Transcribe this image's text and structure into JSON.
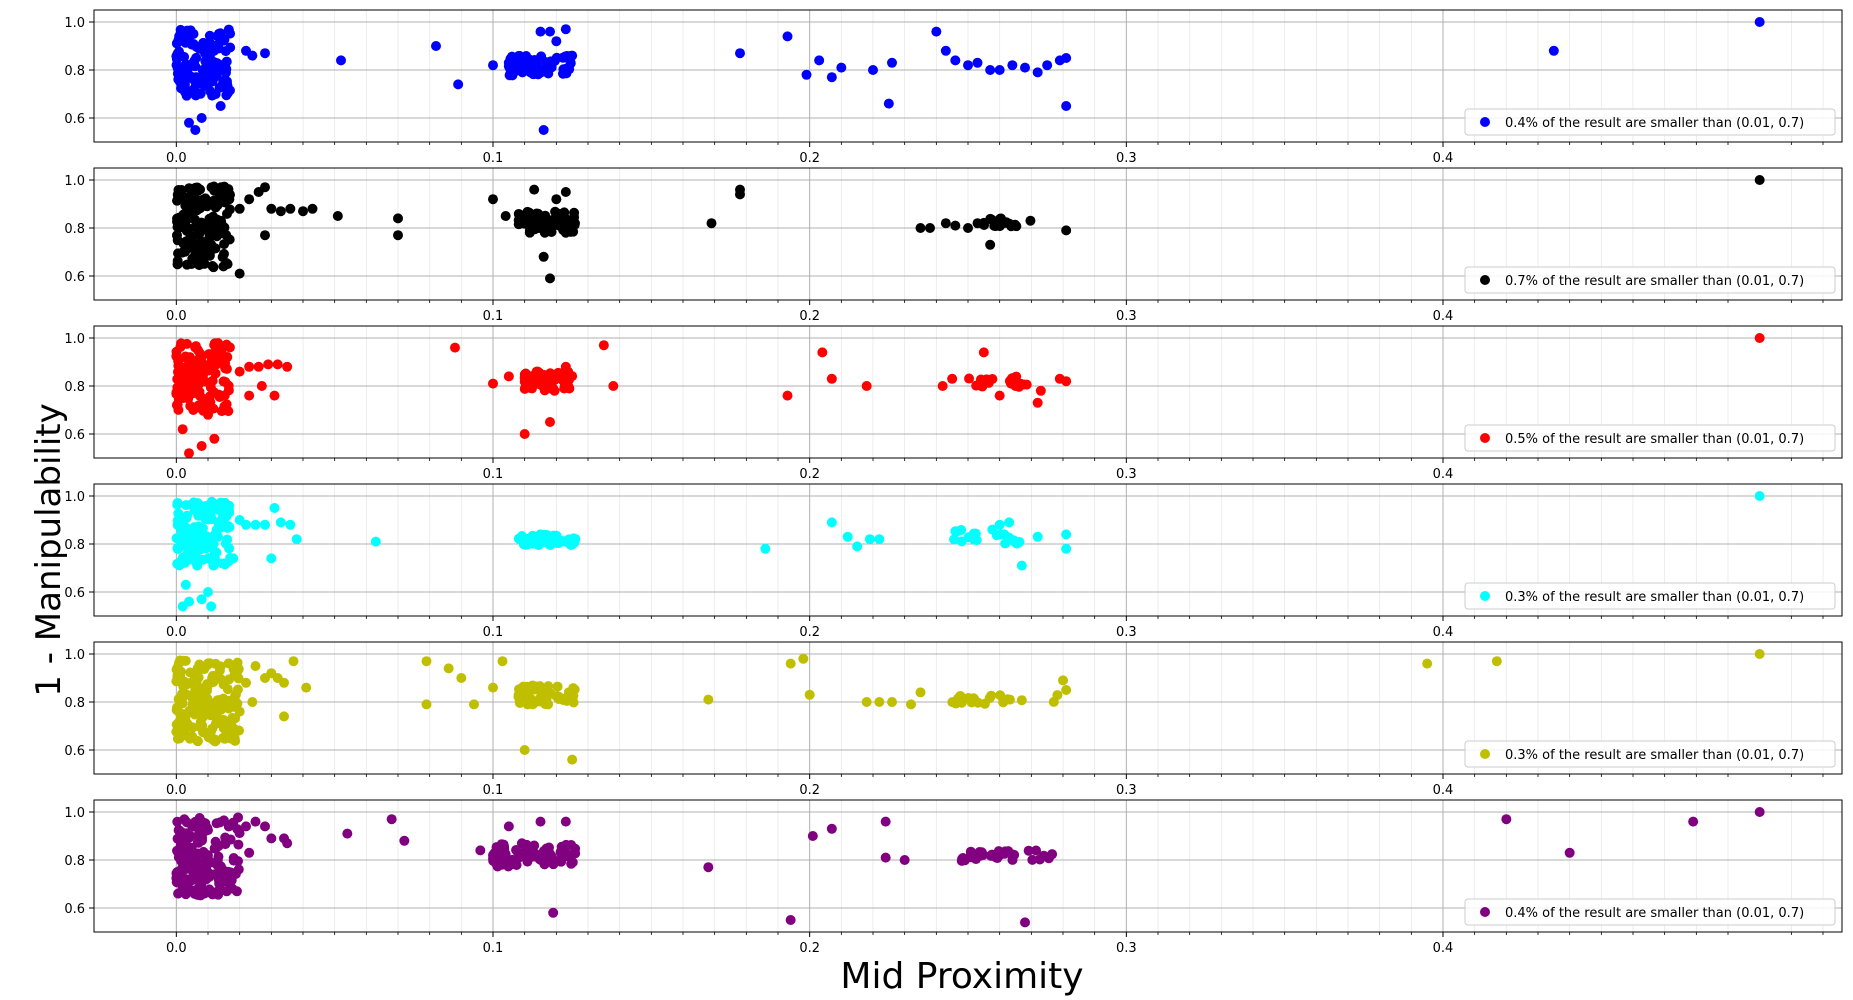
{
  "figure": {
    "xlabel": "Mid Proximity",
    "ylabel": "1 - Manipulability"
  },
  "chart_data": [
    {
      "type": "scatter",
      "color": "#0000ff",
      "xlim": [
        -0.026,
        0.526
      ],
      "ylim": [
        0.5,
        1.05
      ],
      "xticks": [
        0.0,
        0.1,
        0.2,
        0.3,
        0.4
      ],
      "yticks": [
        0.6,
        0.8,
        1.0
      ],
      "grid": true,
      "legend_position": "lower-right",
      "legend": "0.4% of the result are smaller than (0.01, 0.7)",
      "clusters": [
        {
          "x": [
            0.0,
            0.017
          ],
          "y": [
            0.6,
            0.97
          ],
          "n": 140
        },
        {
          "x": [
            0.105,
            0.125
          ],
          "y": [
            0.75,
            0.86
          ],
          "n": 70
        }
      ],
      "points": [
        [
          0.022,
          0.88
        ],
        [
          0.024,
          0.86
        ],
        [
          0.028,
          0.87
        ],
        [
          0.052,
          0.84
        ],
        [
          0.082,
          0.9
        ],
        [
          0.089,
          0.74
        ],
        [
          0.1,
          0.82
        ],
        [
          0.105,
          0.83
        ],
        [
          0.115,
          0.96
        ],
        [
          0.118,
          0.96
        ],
        [
          0.12,
          0.92
        ],
        [
          0.123,
          0.97
        ],
        [
          0.116,
          0.55
        ],
        [
          0.006,
          0.55
        ],
        [
          0.008,
          0.6
        ],
        [
          0.004,
          0.58
        ],
        [
          0.014,
          0.65
        ],
        [
          0.178,
          0.87
        ],
        [
          0.193,
          0.94
        ],
        [
          0.199,
          0.78
        ],
        [
          0.203,
          0.84
        ],
        [
          0.207,
          0.77
        ],
        [
          0.21,
          0.81
        ],
        [
          0.22,
          0.8
        ],
        [
          0.225,
          0.66
        ],
        [
          0.226,
          0.83
        ],
        [
          0.24,
          0.96
        ],
        [
          0.243,
          0.88
        ],
        [
          0.246,
          0.84
        ],
        [
          0.25,
          0.82
        ],
        [
          0.253,
          0.83
        ],
        [
          0.257,
          0.8
        ],
        [
          0.26,
          0.8
        ],
        [
          0.264,
          0.82
        ],
        [
          0.268,
          0.81
        ],
        [
          0.272,
          0.79
        ],
        [
          0.275,
          0.82
        ],
        [
          0.279,
          0.84
        ],
        [
          0.281,
          0.85
        ],
        [
          0.281,
          0.65
        ],
        [
          0.435,
          0.88
        ],
        [
          0.5,
          1.0
        ]
      ]
    },
    {
      "type": "scatter",
      "color": "#000000",
      "xlim": [
        -0.026,
        0.526
      ],
      "ylim": [
        0.5,
        1.05
      ],
      "xticks": [
        0.0,
        0.1,
        0.2,
        0.3,
        0.4
      ],
      "yticks": [
        0.6,
        0.8,
        1.0
      ],
      "grid": true,
      "legend_position": "lower-right",
      "legend": "0.7% of the result are smaller than (0.01, 0.7)",
      "clusters": [
        {
          "x": [
            0.0,
            0.017
          ],
          "y": [
            0.52,
            0.98
          ],
          "n": 160
        },
        {
          "x": [
            0.108,
            0.126
          ],
          "y": [
            0.75,
            0.87
          ],
          "n": 60
        },
        {
          "x": [
            0.255,
            0.27
          ],
          "y": [
            0.79,
            0.84
          ],
          "n": 20
        }
      ],
      "points": [
        [
          0.02,
          0.88
        ],
        [
          0.023,
          0.92
        ],
        [
          0.026,
          0.95
        ],
        [
          0.028,
          0.97
        ],
        [
          0.03,
          0.88
        ],
        [
          0.033,
          0.87
        ],
        [
          0.036,
          0.88
        ],
        [
          0.04,
          0.87
        ],
        [
          0.043,
          0.88
        ],
        [
          0.051,
          0.85
        ],
        [
          0.07,
          0.84
        ],
        [
          0.07,
          0.77
        ],
        [
          0.028,
          0.77
        ],
        [
          0.02,
          0.61
        ],
        [
          0.1,
          0.92
        ],
        [
          0.104,
          0.85
        ],
        [
          0.113,
          0.96
        ],
        [
          0.12,
          0.92
        ],
        [
          0.116,
          0.68
        ],
        [
          0.118,
          0.59
        ],
        [
          0.123,
          0.95
        ],
        [
          0.169,
          0.82
        ],
        [
          0.178,
          0.96
        ],
        [
          0.178,
          0.94
        ],
        [
          0.235,
          0.8
        ],
        [
          0.238,
          0.8
        ],
        [
          0.243,
          0.82
        ],
        [
          0.246,
          0.81
        ],
        [
          0.25,
          0.8
        ],
        [
          0.253,
          0.82
        ],
        [
          0.257,
          0.73
        ],
        [
          0.281,
          0.79
        ],
        [
          0.5,
          1.0
        ]
      ]
    },
    {
      "type": "scatter",
      "color": "#ff0000",
      "xlim": [
        -0.026,
        0.526
      ],
      "ylim": [
        0.5,
        1.05
      ],
      "xticks": [
        0.0,
        0.1,
        0.2,
        0.3,
        0.4
      ],
      "yticks": [
        0.6,
        0.8,
        1.0
      ],
      "grid": true,
      "legend_position": "lower-right",
      "legend": "0.5% of the result are smaller than (0.01, 0.7)",
      "clusters": [
        {
          "x": [
            0.0,
            0.017
          ],
          "y": [
            0.6,
            0.98
          ],
          "n": 140
        },
        {
          "x": [
            0.11,
            0.126
          ],
          "y": [
            0.75,
            0.86
          ],
          "n": 60
        },
        {
          "x": [
            0.25,
            0.27
          ],
          "y": [
            0.78,
            0.84
          ],
          "n": 20
        }
      ],
      "points": [
        [
          0.02,
          0.86
        ],
        [
          0.023,
          0.88
        ],
        [
          0.026,
          0.88
        ],
        [
          0.029,
          0.89
        ],
        [
          0.032,
          0.89
        ],
        [
          0.035,
          0.88
        ],
        [
          0.027,
          0.8
        ],
        [
          0.031,
          0.76
        ],
        [
          0.023,
          0.76
        ],
        [
          0.004,
          0.52
        ],
        [
          0.008,
          0.55
        ],
        [
          0.012,
          0.58
        ],
        [
          0.002,
          0.62
        ],
        [
          0.01,
          0.68
        ],
        [
          0.088,
          0.96
        ],
        [
          0.1,
          0.81
        ],
        [
          0.105,
          0.84
        ],
        [
          0.11,
          0.6
        ],
        [
          0.118,
          0.65
        ],
        [
          0.123,
          0.88
        ],
        [
          0.135,
          0.97
        ],
        [
          0.138,
          0.8
        ],
        [
          0.193,
          0.76
        ],
        [
          0.204,
          0.94
        ],
        [
          0.207,
          0.83
        ],
        [
          0.218,
          0.8
        ],
        [
          0.242,
          0.8
        ],
        [
          0.245,
          0.83
        ],
        [
          0.255,
          0.94
        ],
        [
          0.26,
          0.76
        ],
        [
          0.265,
          0.8
        ],
        [
          0.272,
          0.73
        ],
        [
          0.273,
          0.78
        ],
        [
          0.279,
          0.83
        ],
        [
          0.281,
          0.82
        ],
        [
          0.5,
          1.0
        ]
      ]
    },
    {
      "type": "scatter",
      "color": "#00ffff",
      "xlim": [
        -0.026,
        0.526
      ],
      "ylim": [
        0.5,
        1.05
      ],
      "xticks": [
        0.0,
        0.1,
        0.2,
        0.3,
        0.4
      ],
      "yticks": [
        0.6,
        0.8,
        1.0
      ],
      "grid": true,
      "legend_position": "lower-right",
      "legend": "0.3% of the result are smaller than (0.01, 0.7)",
      "clusters": [
        {
          "x": [
            0.0,
            0.017
          ],
          "y": [
            0.62,
            0.98
          ],
          "n": 130
        },
        {
          "x": [
            0.108,
            0.126
          ],
          "y": [
            0.78,
            0.84
          ],
          "n": 50
        },
        {
          "x": [
            0.245,
            0.267
          ],
          "y": [
            0.78,
            0.86
          ],
          "n": 20
        }
      ],
      "points": [
        [
          0.02,
          0.9
        ],
        [
          0.022,
          0.88
        ],
        [
          0.025,
          0.88
        ],
        [
          0.028,
          0.88
        ],
        [
          0.031,
          0.95
        ],
        [
          0.033,
          0.89
        ],
        [
          0.036,
          0.88
        ],
        [
          0.038,
          0.82
        ],
        [
          0.03,
          0.74
        ],
        [
          0.018,
          0.74
        ],
        [
          0.063,
          0.81
        ],
        [
          0.002,
          0.54
        ],
        [
          0.004,
          0.56
        ],
        [
          0.008,
          0.57
        ],
        [
          0.011,
          0.54
        ],
        [
          0.01,
          0.6
        ],
        [
          0.003,
          0.63
        ],
        [
          0.186,
          0.78
        ],
        [
          0.207,
          0.89
        ],
        [
          0.212,
          0.83
        ],
        [
          0.215,
          0.79
        ],
        [
          0.219,
          0.82
        ],
        [
          0.222,
          0.82
        ],
        [
          0.26,
          0.88
        ],
        [
          0.263,
          0.89
        ],
        [
          0.267,
          0.71
        ],
        [
          0.272,
          0.83
        ],
        [
          0.281,
          0.78
        ],
        [
          0.281,
          0.84
        ],
        [
          0.5,
          1.0
        ]
      ]
    },
    {
      "type": "scatter",
      "color": "#bfbf00",
      "xlim": [
        -0.026,
        0.526
      ],
      "ylim": [
        0.5,
        1.05
      ],
      "xticks": [
        0.0,
        0.1,
        0.2,
        0.3,
        0.4
      ],
      "yticks": [
        0.6,
        0.8,
        1.0
      ],
      "grid": true,
      "legend_position": "lower-right",
      "legend": "0.3% of the result are smaller than (0.01, 0.7)",
      "clusters": [
        {
          "x": [
            0.0,
            0.02
          ],
          "y": [
            0.52,
            0.98
          ],
          "n": 180
        },
        {
          "x": [
            0.108,
            0.126
          ],
          "y": [
            0.76,
            0.87
          ],
          "n": 60
        },
        {
          "x": [
            0.245,
            0.28
          ],
          "y": [
            0.78,
            0.83
          ],
          "n": 25
        }
      ],
      "points": [
        [
          0.022,
          0.88
        ],
        [
          0.025,
          0.95
        ],
        [
          0.028,
          0.9
        ],
        [
          0.03,
          0.92
        ],
        [
          0.032,
          0.9
        ],
        [
          0.034,
          0.88
        ],
        [
          0.037,
          0.97
        ],
        [
          0.041,
          0.86
        ],
        [
          0.024,
          0.8
        ],
        [
          0.02,
          0.76
        ],
        [
          0.034,
          0.74
        ],
        [
          0.015,
          0.69
        ],
        [
          0.079,
          0.97
        ],
        [
          0.079,
          0.79
        ],
        [
          0.086,
          0.94
        ],
        [
          0.09,
          0.9
        ],
        [
          0.094,
          0.79
        ],
        [
          0.1,
          0.86
        ],
        [
          0.103,
          0.97
        ],
        [
          0.11,
          0.6
        ],
        [
          0.125,
          0.56
        ],
        [
          0.168,
          0.81
        ],
        [
          0.194,
          0.96
        ],
        [
          0.198,
          0.98
        ],
        [
          0.2,
          0.83
        ],
        [
          0.218,
          0.8
        ],
        [
          0.222,
          0.8
        ],
        [
          0.226,
          0.8
        ],
        [
          0.232,
          0.79
        ],
        [
          0.235,
          0.84
        ],
        [
          0.28,
          0.89
        ],
        [
          0.281,
          0.85
        ],
        [
          0.395,
          0.96
        ],
        [
          0.417,
          0.97
        ],
        [
          0.5,
          1.0
        ]
      ]
    },
    {
      "type": "scatter",
      "color": "#800080",
      "xlim": [
        -0.026,
        0.526
      ],
      "ylim": [
        0.5,
        1.05
      ],
      "xticks": [
        0.0,
        0.1,
        0.2,
        0.3,
        0.4
      ],
      "yticks": [
        0.6,
        0.8,
        1.0
      ],
      "grid": true,
      "legend_position": "lower-right",
      "legend": "0.4% of the result are smaller than (0.01, 0.7)",
      "clusters": [
        {
          "x": [
            0.0,
            0.02
          ],
          "y": [
            0.54,
            0.98
          ],
          "n": 170
        },
        {
          "x": [
            0.1,
            0.126
          ],
          "y": [
            0.74,
            0.87
          ],
          "n": 80
        },
        {
          "x": [
            0.248,
            0.28
          ],
          "y": [
            0.78,
            0.84
          ],
          "n": 30
        }
      ],
      "points": [
        [
          0.022,
          0.94
        ],
        [
          0.025,
          0.96
        ],
        [
          0.028,
          0.94
        ],
        [
          0.03,
          0.89
        ],
        [
          0.034,
          0.89
        ],
        [
          0.035,
          0.87
        ],
        [
          0.023,
          0.83
        ],
        [
          0.054,
          0.91
        ],
        [
          0.068,
          0.97
        ],
        [
          0.072,
          0.88
        ],
        [
          0.096,
          0.84
        ],
        [
          0.1,
          0.82
        ],
        [
          0.105,
          0.94
        ],
        [
          0.115,
          0.96
        ],
        [
          0.119,
          0.58
        ],
        [
          0.123,
          0.96
        ],
        [
          0.168,
          0.77
        ],
        [
          0.194,
          0.55
        ],
        [
          0.201,
          0.9
        ],
        [
          0.207,
          0.93
        ],
        [
          0.224,
          0.96
        ],
        [
          0.224,
          0.81
        ],
        [
          0.23,
          0.8
        ],
        [
          0.26,
          0.82
        ],
        [
          0.268,
          0.54
        ],
        [
          0.42,
          0.97
        ],
        [
          0.44,
          0.83
        ],
        [
          0.479,
          0.96
        ],
        [
          0.5,
          1.0
        ]
      ]
    }
  ]
}
